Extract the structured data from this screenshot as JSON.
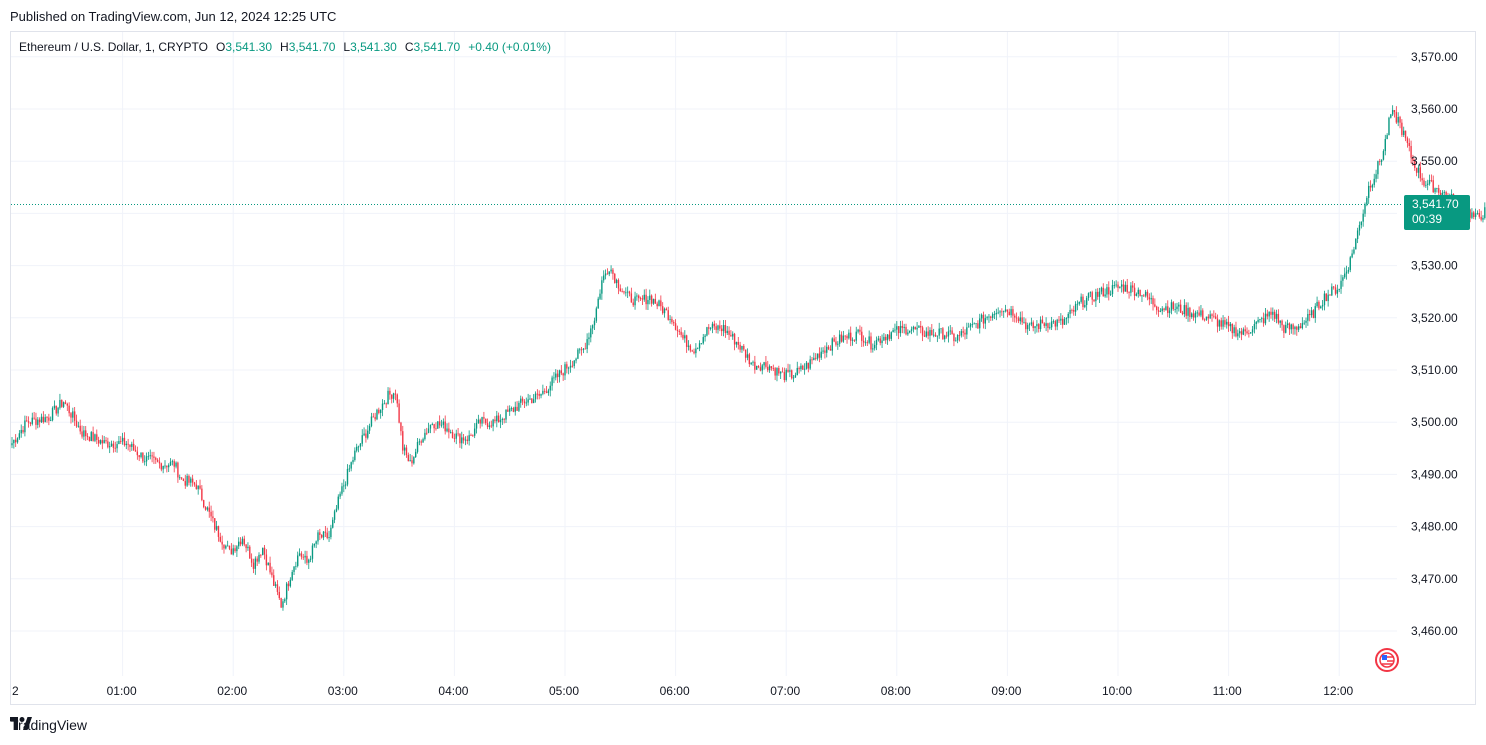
{
  "header": {
    "published": "Published on TradingView.com, Jun 12, 2024 12:25 UTC"
  },
  "legend": {
    "symbol": "Ethereum / U.S. Dollar, 1, CRYPTO",
    "o_key": "O",
    "o": "3,541.30",
    "h_key": "H",
    "h": "3,541.70",
    "l_key": "L",
    "l": "3,541.30",
    "c_key": "C",
    "c": "3,541.70",
    "change": "+0.40 (+0.01%)"
  },
  "price_badge": {
    "price": "3,541.70",
    "countdown": "00:39"
  },
  "footer": {
    "brand": "TradingView"
  },
  "colors": {
    "up": "#089981",
    "down": "#f23645",
    "grid": "#f0f3fa",
    "axis_text": "#131722",
    "brand_mark": "#131722"
  },
  "chart_data": {
    "type": "candlestick",
    "title": "",
    "interval": "1",
    "y_ticks": [
      "3,460.00",
      "3,470.00",
      "3,480.00",
      "3,490.00",
      "3,500.00",
      "3,510.00",
      "3,520.00",
      "3,530.00",
      "3,540.00",
      "3,550.00",
      "3,560.00",
      "3,570.00"
    ],
    "y_tick_values": [
      3460,
      3470,
      3480,
      3490,
      3500,
      3510,
      3520,
      3530,
      3540,
      3550,
      3560,
      3570
    ],
    "x_ticks": [
      "2",
      "01:00",
      "02:00",
      "03:00",
      "04:00",
      "05:00",
      "06:00",
      "07:00",
      "08:00",
      "09:00",
      "10:00",
      "11:00",
      "12:00"
    ],
    "ylim": [
      3452,
      3575
    ],
    "last_price": 3541.7,
    "grid": true,
    "close_path": [
      [
        0,
        3496
      ],
      [
        8,
        3500
      ],
      [
        20,
        3501
      ],
      [
        28,
        3504
      ],
      [
        38,
        3498
      ],
      [
        50,
        3496
      ],
      [
        62,
        3496
      ],
      [
        72,
        3493
      ],
      [
        80,
        3492
      ],
      [
        88,
        3492
      ],
      [
        92,
        3489
      ],
      [
        100,
        3488
      ],
      [
        110,
        3480
      ],
      [
        118,
        3475
      ],
      [
        125,
        3478
      ],
      [
        131,
        3473
      ],
      [
        136,
        3476
      ],
      [
        142,
        3469
      ],
      [
        146,
        3465
      ],
      [
        148,
        3467
      ],
      [
        152,
        3472
      ],
      [
        156,
        3475
      ],
      [
        160,
        3473
      ],
      [
        166,
        3478
      ],
      [
        172,
        3478
      ],
      [
        178,
        3486
      ],
      [
        186,
        3494
      ],
      [
        192,
        3498
      ],
      [
        198,
        3502
      ],
      [
        204,
        3505
      ],
      [
        208,
        3506
      ],
      [
        212,
        3495
      ],
      [
        216,
        3492
      ],
      [
        222,
        3497
      ],
      [
        228,
        3500
      ],
      [
        236,
        3499
      ],
      [
        242,
        3497
      ],
      [
        248,
        3497
      ],
      [
        254,
        3500
      ],
      [
        262,
        3500
      ],
      [
        270,
        3502
      ],
      [
        278,
        3504
      ],
      [
        286,
        3505
      ],
      [
        294,
        3508
      ],
      [
        302,
        3511
      ],
      [
        310,
        3514
      ],
      [
        316,
        3520
      ],
      [
        320,
        3527
      ],
      [
        324,
        3530
      ],
      [
        328,
        3527
      ],
      [
        334,
        3524
      ],
      [
        340,
        3523
      ],
      [
        346,
        3524
      ],
      [
        352,
        3522
      ],
      [
        358,
        3520
      ],
      [
        364,
        3516
      ],
      [
        370,
        3514
      ],
      [
        378,
        3518
      ],
      [
        386,
        3518
      ],
      [
        394,
        3515
      ],
      [
        402,
        3511
      ],
      [
        410,
        3511
      ],
      [
        418,
        3509
      ],
      [
        424,
        3509
      ],
      [
        432,
        3511
      ],
      [
        440,
        3514
      ],
      [
        450,
        3516
      ],
      [
        460,
        3517
      ],
      [
        466,
        3515
      ],
      [
        476,
        3517
      ],
      [
        486,
        3518
      ],
      [
        496,
        3517
      ],
      [
        506,
        3517
      ],
      [
        512,
        3516
      ],
      [
        520,
        3518
      ],
      [
        528,
        3520
      ],
      [
        536,
        3522
      ],
      [
        544,
        3521
      ],
      [
        552,
        3518
      ],
      [
        560,
        3519
      ],
      [
        570,
        3519
      ],
      [
        580,
        3523
      ],
      [
        592,
        3525
      ],
      [
        602,
        3526
      ],
      [
        612,
        3525
      ],
      [
        622,
        3522
      ],
      [
        630,
        3522
      ],
      [
        640,
        3521
      ],
      [
        650,
        3520
      ],
      [
        660,
        3518
      ],
      [
        668,
        3517
      ],
      [
        676,
        3519
      ],
      [
        684,
        3521
      ],
      [
        690,
        3518
      ],
      [
        696,
        3518
      ],
      [
        704,
        3520
      ],
      [
        712,
        3524
      ],
      [
        720,
        3526
      ],
      [
        726,
        3531
      ],
      [
        732,
        3539
      ],
      [
        736,
        3545
      ],
      [
        740,
        3548
      ],
      [
        744,
        3552
      ],
      [
        748,
        3559
      ],
      [
        752,
        3558
      ],
      [
        756,
        3554
      ],
      [
        760,
        3550
      ],
      [
        766,
        3546
      ],
      [
        772,
        3545
      ],
      [
        780,
        3543
      ],
      [
        788,
        3541
      ],
      [
        794,
        3539
      ],
      [
        802,
        3541
      ],
      [
        808,
        3543
      ],
      [
        814,
        3542
      ],
      [
        820,
        3543
      ],
      [
        828,
        3542
      ],
      [
        836,
        3542
      ],
      [
        844,
        3543
      ],
      [
        852,
        3544
      ],
      [
        856,
        3546
      ],
      [
        862,
        3544
      ],
      [
        868,
        3541
      ],
      [
        874,
        3539
      ],
      [
        880,
        3535
      ],
      [
        884,
        3532
      ],
      [
        890,
        3533
      ],
      [
        896,
        3534
      ],
      [
        902,
        3535
      ],
      [
        908,
        3535
      ],
      [
        914,
        3536
      ],
      [
        920,
        3538
      ],
      [
        924,
        3541.7
      ]
    ]
  }
}
